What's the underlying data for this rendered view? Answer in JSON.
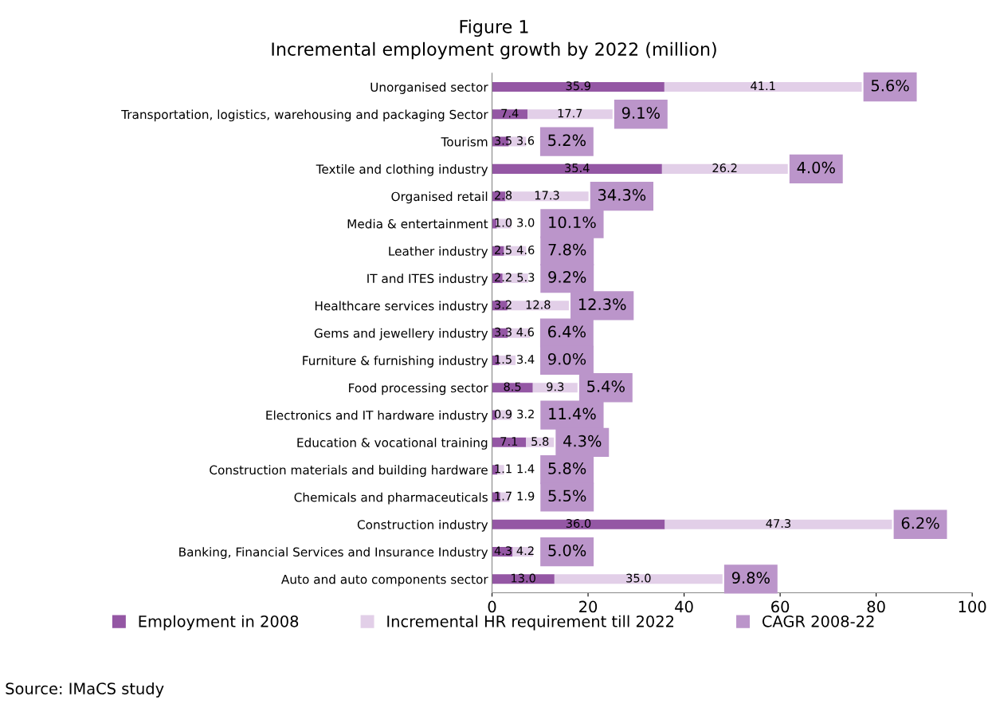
{
  "chart_data": {
    "type": "bar",
    "orientation": "horizontal",
    "stacked": true,
    "title": "Figure 1",
    "subtitle": "Incremental employment growth by 2022 (million)",
    "categories": [
      "Unorganised sector",
      "Transportation, logistics, warehousing and packaging Sector",
      "Tourism",
      "Textile and clothing industry",
      "Organised retail",
      "Media & entertainment",
      "Leather industry",
      "IT and ITES industry",
      "Healthcare services industry",
      "Gems and jewellery industry",
      "Furniture & furnishing industry",
      "Food processing sector",
      "Electronics and IT hardware industry",
      "Education & vocational training",
      "Construction materials and building hardware",
      "Chemicals and pharmaceuticals",
      "Construction industry",
      "Banking, Financial Services and Insurance Industry",
      "Auto and auto components sector"
    ],
    "series": [
      {
        "name": "Employment in 2008",
        "color": "#9457a4",
        "values": [
          35.9,
          7.4,
          3.5,
          35.4,
          2.8,
          1.0,
          2.5,
          2.2,
          3.2,
          3.3,
          1.5,
          8.5,
          0.9,
          7.1,
          1.1,
          1.7,
          36.0,
          4.3,
          13.0
        ],
        "value_labels": [
          "35.9",
          "7.4",
          "3.5",
          "35.4",
          "2.8",
          "1.0",
          "2.5",
          "2.2",
          "3.2",
          "3.3",
          "1.5",
          "8.5",
          "0.9",
          "7.1",
          "1.1",
          "1.7",
          "36.0",
          "4.3",
          "13.0"
        ]
      },
      {
        "name": "Incremental HR requirement till 2022",
        "color": "#e2cfe8",
        "values": [
          41.1,
          17.7,
          3.6,
          26.2,
          17.3,
          3.0,
          4.6,
          5.3,
          12.8,
          4.6,
          3.4,
          9.3,
          3.2,
          5.8,
          1.4,
          1.9,
          47.3,
          4.2,
          35.0
        ],
        "value_labels": [
          "41.1",
          "17.7",
          "3.6",
          "26.2",
          "17.3",
          "3.0",
          "4.6",
          "5.3",
          "12.8",
          "4.6",
          "3.4",
          "9.3",
          "3.2",
          "5.8",
          "1.4",
          "1.9",
          "47.3",
          "4.2",
          "35.0"
        ]
      },
      {
        "name": "CAGR 2008-22",
        "color": "#bb95ca",
        "values": [
          null,
          null,
          null,
          null,
          null,
          null,
          null,
          null,
          null,
          null,
          null,
          null,
          null,
          null,
          null,
          null,
          null,
          null,
          null
        ],
        "value_labels": [
          "5.6%",
          "9.1%",
          "5.2%",
          "4.0%",
          "34.3%",
          "10.1%",
          "7.8%",
          "9.2%",
          "12.3%",
          "6.4%",
          "9.0%",
          "5.4%",
          "11.4%",
          "4.3%",
          "5.8%",
          "5.5%",
          "6.2%",
          "5.0%",
          "9.8%"
        ]
      }
    ],
    "xlim": [
      0,
      100
    ],
    "xticks": [
      0,
      20,
      40,
      60,
      80,
      100
    ],
    "grid": false,
    "legend": "bottom",
    "annotations": [
      "Source: IMaCS study"
    ]
  }
}
